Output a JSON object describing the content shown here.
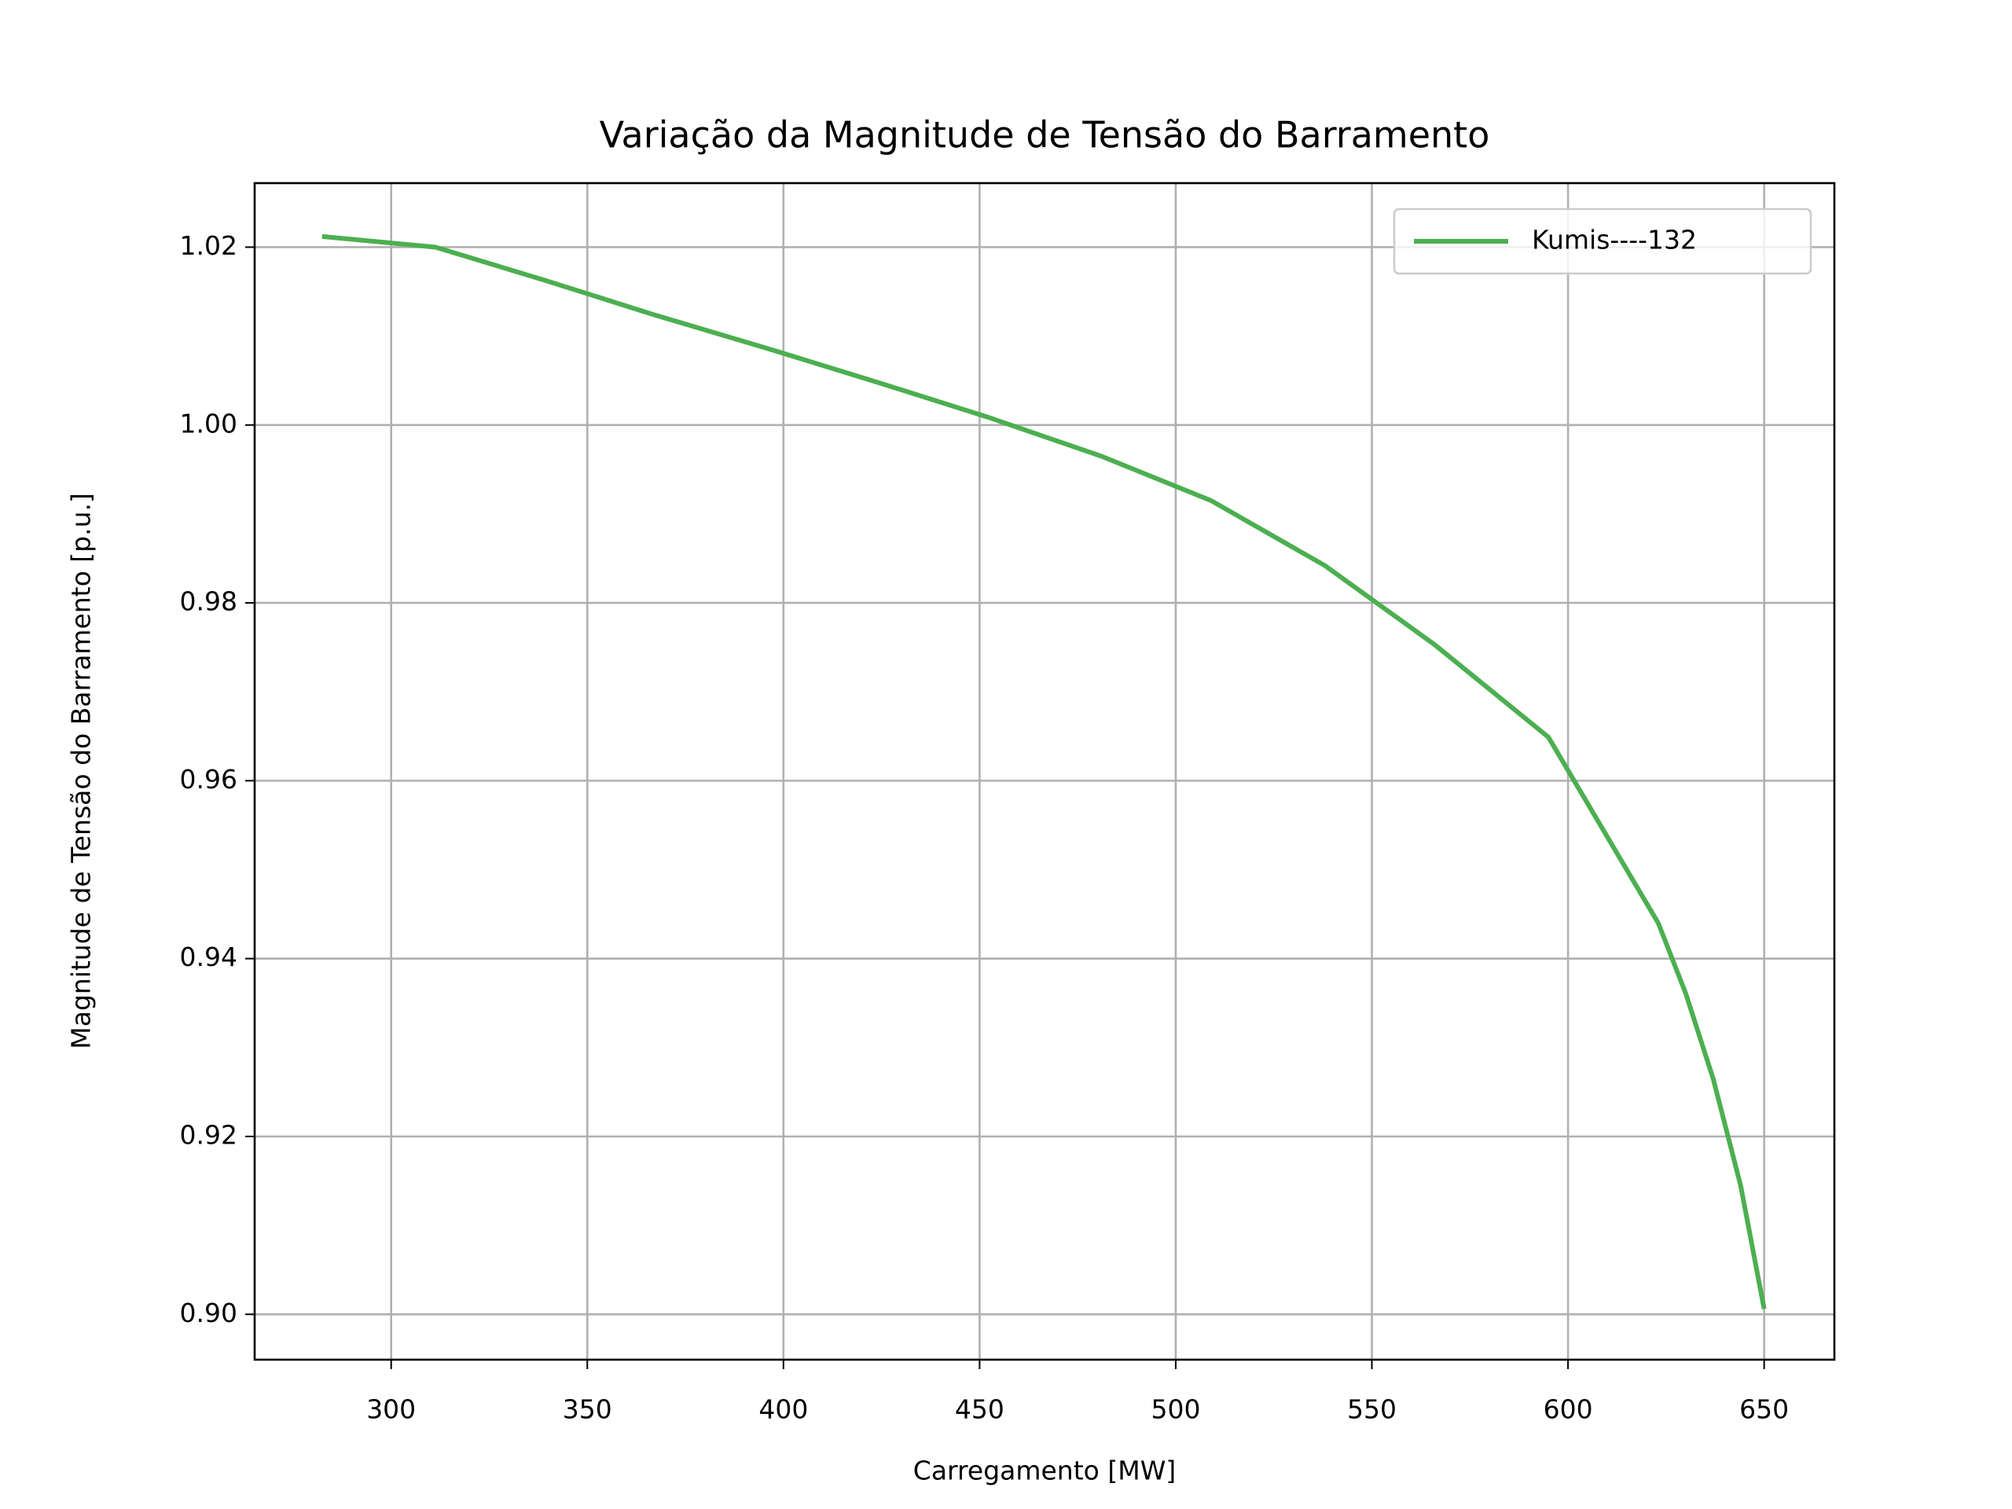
{
  "chart_data": {
    "type": "line",
    "title": "Variação da Magnitude de Tensão do Barramento",
    "x_label": "Carregamento [MW]",
    "y_label": "Magnitude de Tensão do Barramento [p.u.]",
    "x": [
      282.4,
      311.3,
      339,
      367,
      396,
      424,
      452,
      481,
      509,
      538,
      566,
      595,
      623,
      630,
      637,
      644,
      650
    ],
    "series": [
      {
        "name": "Kumis----132",
        "color": "#4caf50",
        "values": [
          1.0212,
          1.02,
          1.0163,
          1.0124,
          1.0086,
          1.0048,
          1.0009,
          0.9965,
          0.9915,
          0.9842,
          0.9753,
          0.9649,
          0.944,
          0.9361,
          0.9265,
          0.9145,
          0.9006
        ]
      }
    ],
    "xlim": [
      265.2,
      667.9
    ],
    "xticks": [
      300,
      350,
      400,
      450,
      500,
      550,
      600,
      650
    ],
    "ylim": [
      0.8949,
      1.0272
    ],
    "yticks": [
      {
        "value": 0.9,
        "label": "0.90"
      },
      {
        "value": 0.92,
        "label": "0.92"
      },
      {
        "value": 0.94,
        "label": "0.94"
      },
      {
        "value": 0.96,
        "label": "0.96"
      },
      {
        "value": 0.98,
        "label": "0.98"
      },
      {
        "value": 1.0,
        "label": "1.00"
      },
      {
        "value": 1.02,
        "label": "1.02"
      }
    ],
    "grid": true,
    "legend": "upper right"
  }
}
